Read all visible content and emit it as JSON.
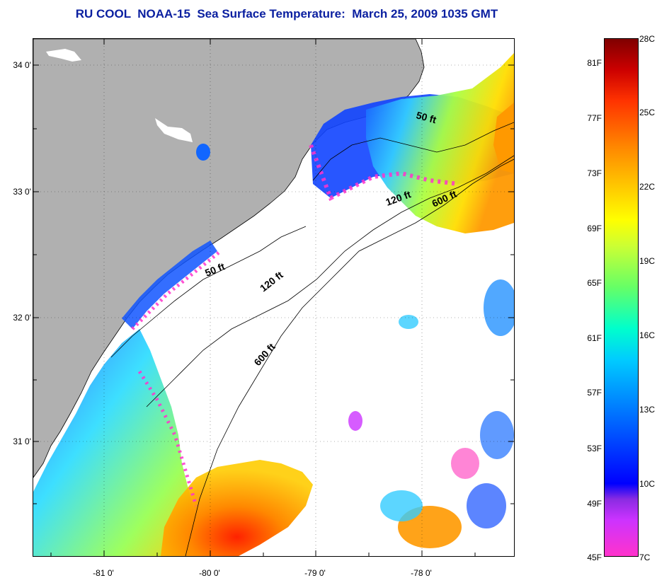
{
  "title": "RU COOL  NOAA-15  Sea Surface Temperature:  March 25, 2009 1035 GMT",
  "latitude_labels": [
    "34 0'",
    "33 0'",
    "32 0'",
    "31 0'"
  ],
  "longitude_labels": [
    "-81 0'",
    "-80 0'",
    "-79 0'",
    "-78 0'"
  ],
  "contour_labels": [
    "50 ft",
    "120 ft",
    "600 ft",
    "50 ft",
    "120 ft",
    "600 ft"
  ],
  "colorbar": {
    "fahrenheit": [
      "81F",
      "77F",
      "73F",
      "69F",
      "65F",
      "61F",
      "57F",
      "53F",
      "49F",
      "45F"
    ],
    "celsius": [
      "28C",
      "25C",
      "22C",
      "19C",
      "16C",
      "13C",
      "10C",
      "7C"
    ]
  },
  "colors": {
    "title": "#0a1fa0",
    "land": "#b0b0b0",
    "no_data": "#ffffff",
    "cold": "#0044ff",
    "warm": "#ff3300",
    "magenta": "#ff33cc"
  }
}
